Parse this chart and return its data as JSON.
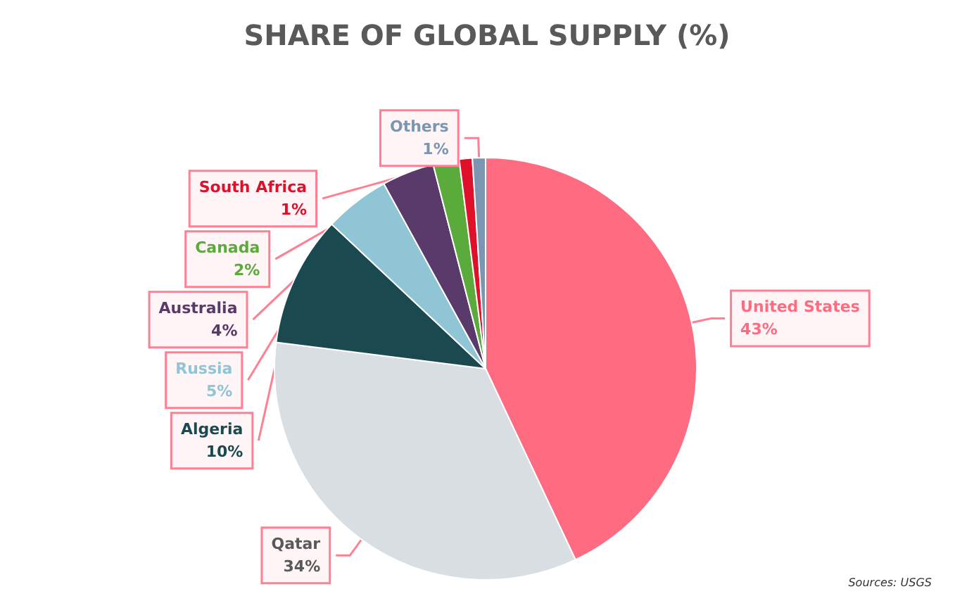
{
  "chart_data": {
    "type": "pie",
    "title": "SHARE OF GLOBAL SUPPLY (%)",
    "categories": [
      "United States",
      "Qatar",
      "Algeria",
      "Russia",
      "Australia",
      "Canada",
      "South Africa",
      "Others"
    ],
    "values": [
      43,
      34,
      10,
      5,
      4,
      2,
      1,
      1
    ],
    "value_labels": [
      "43%",
      "34%",
      "10%",
      "5%",
      "4%",
      "2%",
      "1%",
      "1%"
    ],
    "colors": [
      "#ff6b81",
      "#d9dee3",
      "#1a4a50",
      "#8fc5d4",
      "#5a3a6b",
      "#5aaa3c",
      "#e0102a",
      "#7a96b0"
    ],
    "legend": false,
    "annotations": [
      "Sources: USGS"
    ]
  }
}
